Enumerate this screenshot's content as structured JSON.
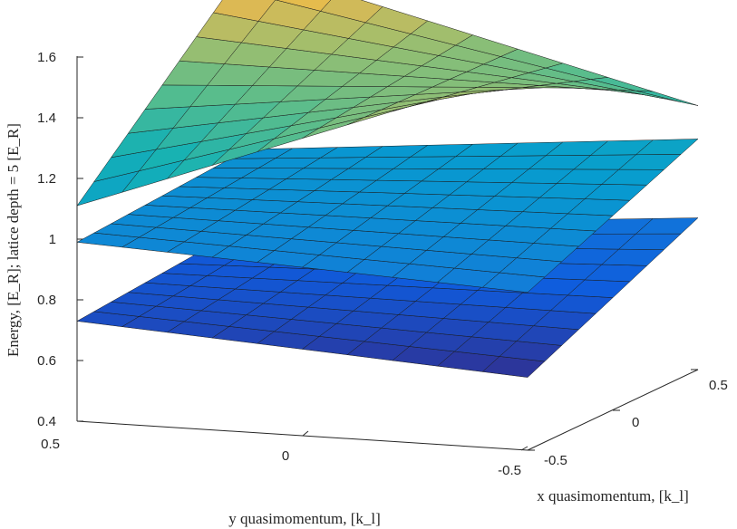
{
  "chart_data": {
    "type": "surface3d",
    "title": "",
    "xlabel": "x quasimomentum, [k_l]",
    "ylabel": "y quasimomentum, [k_l]",
    "zlabel": "Energy, [E_R]; latice depth = 5 [E_R]",
    "xlim": [
      -0.5,
      0.5
    ],
    "ylim": [
      -0.5,
      0.5
    ],
    "zlim": [
      0.4,
      1.7
    ],
    "x_ticks": [
      "-0.5",
      "0",
      "0.5"
    ],
    "y_ticks": [
      "0.5",
      "0",
      "-0.5"
    ],
    "z_ticks": [
      "0.4",
      "0.6",
      "0.8",
      "1",
      "1.2",
      "1.4",
      "1.6"
    ],
    "colormap": "parula",
    "grid": false,
    "series": [
      {
        "corner_values": {
          "x-0.5_y0.5": 0.73,
          "x0.5_y0.5": 0.78,
          "x0.5_y-0.5": 0.9,
          "x-0.5_y-0.5": 0.64
        }
      },
      {
        "corner_values": {
          "x-0.5_y0.5": 0.99,
          "x0.5_y0.5": 1.03,
          "x0.5_y-0.5": 1.16,
          "x-0.5_y-0.5": 0.92
        }
      },
      {
        "corner_values": {
          "x-0.5_y0.5": 1.11,
          "x0.5_y0.5": 1.64,
          "x0.5_y-0.5": 1.27,
          "x-0.5_y-0.5": 1.65
        }
      }
    ]
  }
}
